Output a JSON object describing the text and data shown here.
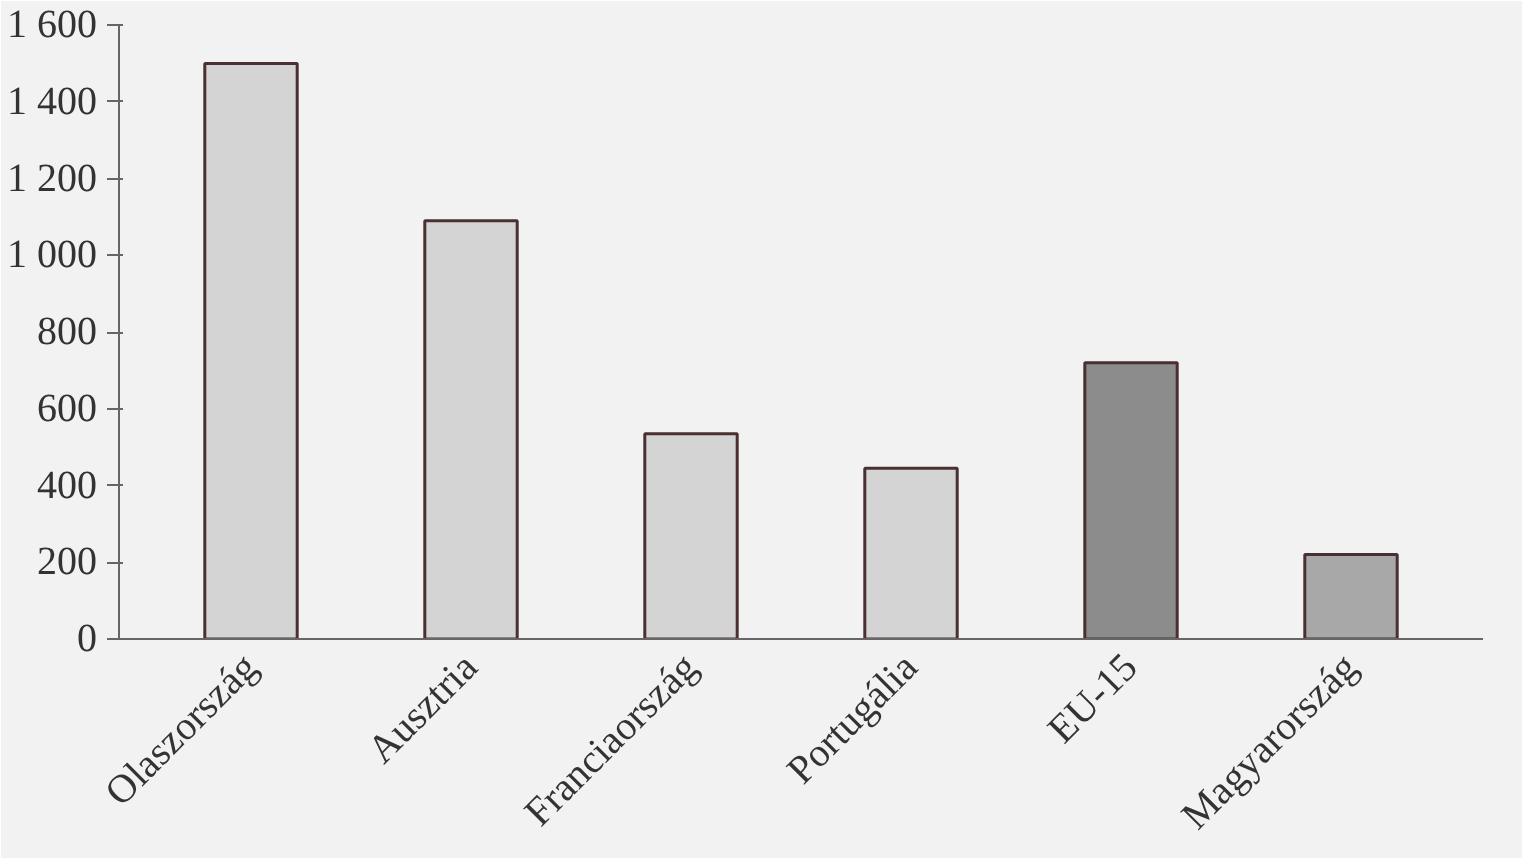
{
  "chart_data": {
    "type": "bar",
    "categories": [
      "Olaszország",
      "Ausztria",
      "Franciaország",
      "Portugália",
      "EU-15",
      "Magyarország"
    ],
    "values": [
      1500,
      1090,
      535,
      445,
      720,
      220
    ],
    "colors": [
      "#d4d4d4",
      "#d4d4d4",
      "#d4d4d4",
      "#d4d4d4",
      "#8c8c8c",
      "#a8a8a8"
    ],
    "ylim": [
      0,
      1600
    ],
    "yticks": [
      0,
      200,
      400,
      600,
      800,
      {
        "value": 1000,
        "label": "1 000"
      },
      {
        "value": 1200,
        "label": "1 200"
      },
      {
        "value": 1400,
        "label": "1 400"
      },
      {
        "value": 1600,
        "label": "1 600"
      }
    ],
    "grid": false
  }
}
